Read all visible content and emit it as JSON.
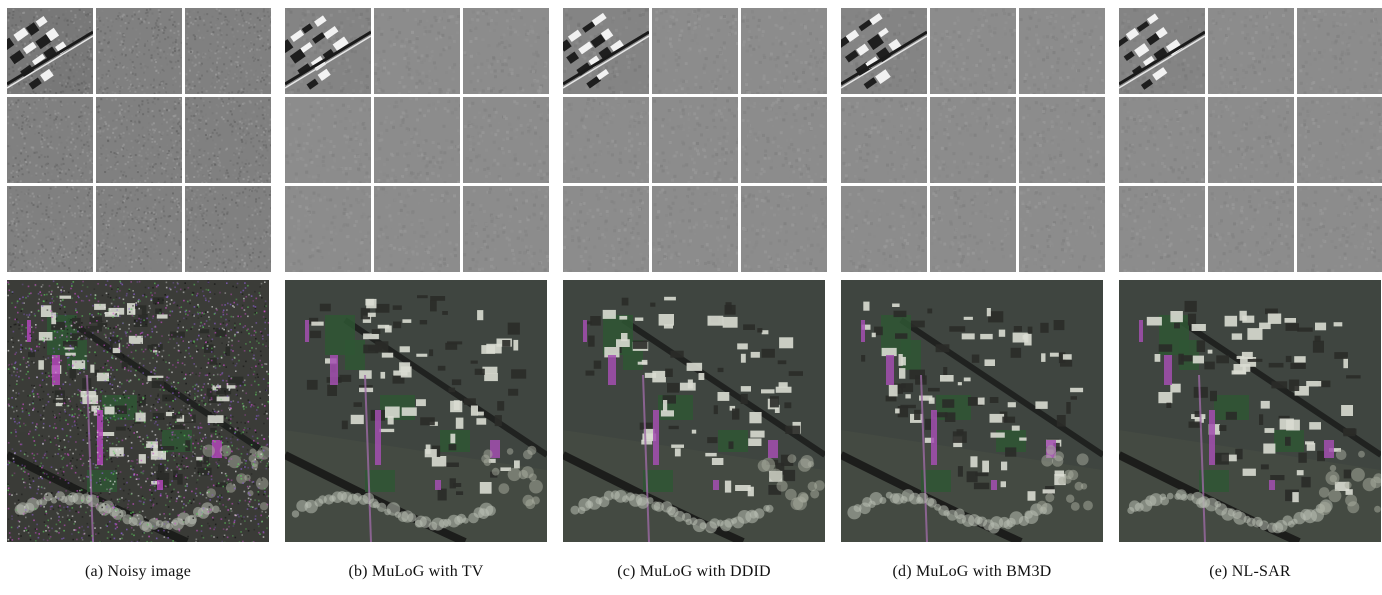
{
  "figure": {
    "panels": [
      {
        "caption": "(a) Noisy image",
        "noise": "high",
        "accent": "#b347b8"
      },
      {
        "caption": "(b) MuLoG with TV",
        "noise": "low",
        "accent": "#a34fb0"
      },
      {
        "caption": "(c) MuLoG with DDID",
        "noise": "low",
        "accent": "#a34fb0"
      },
      {
        "caption": "(d) MuLoG with BM3D",
        "noise": "low",
        "accent": "#a34fb0"
      },
      {
        "caption": "(e) NL-SAR",
        "noise": "low",
        "accent": "#a34fb0"
      }
    ]
  }
}
